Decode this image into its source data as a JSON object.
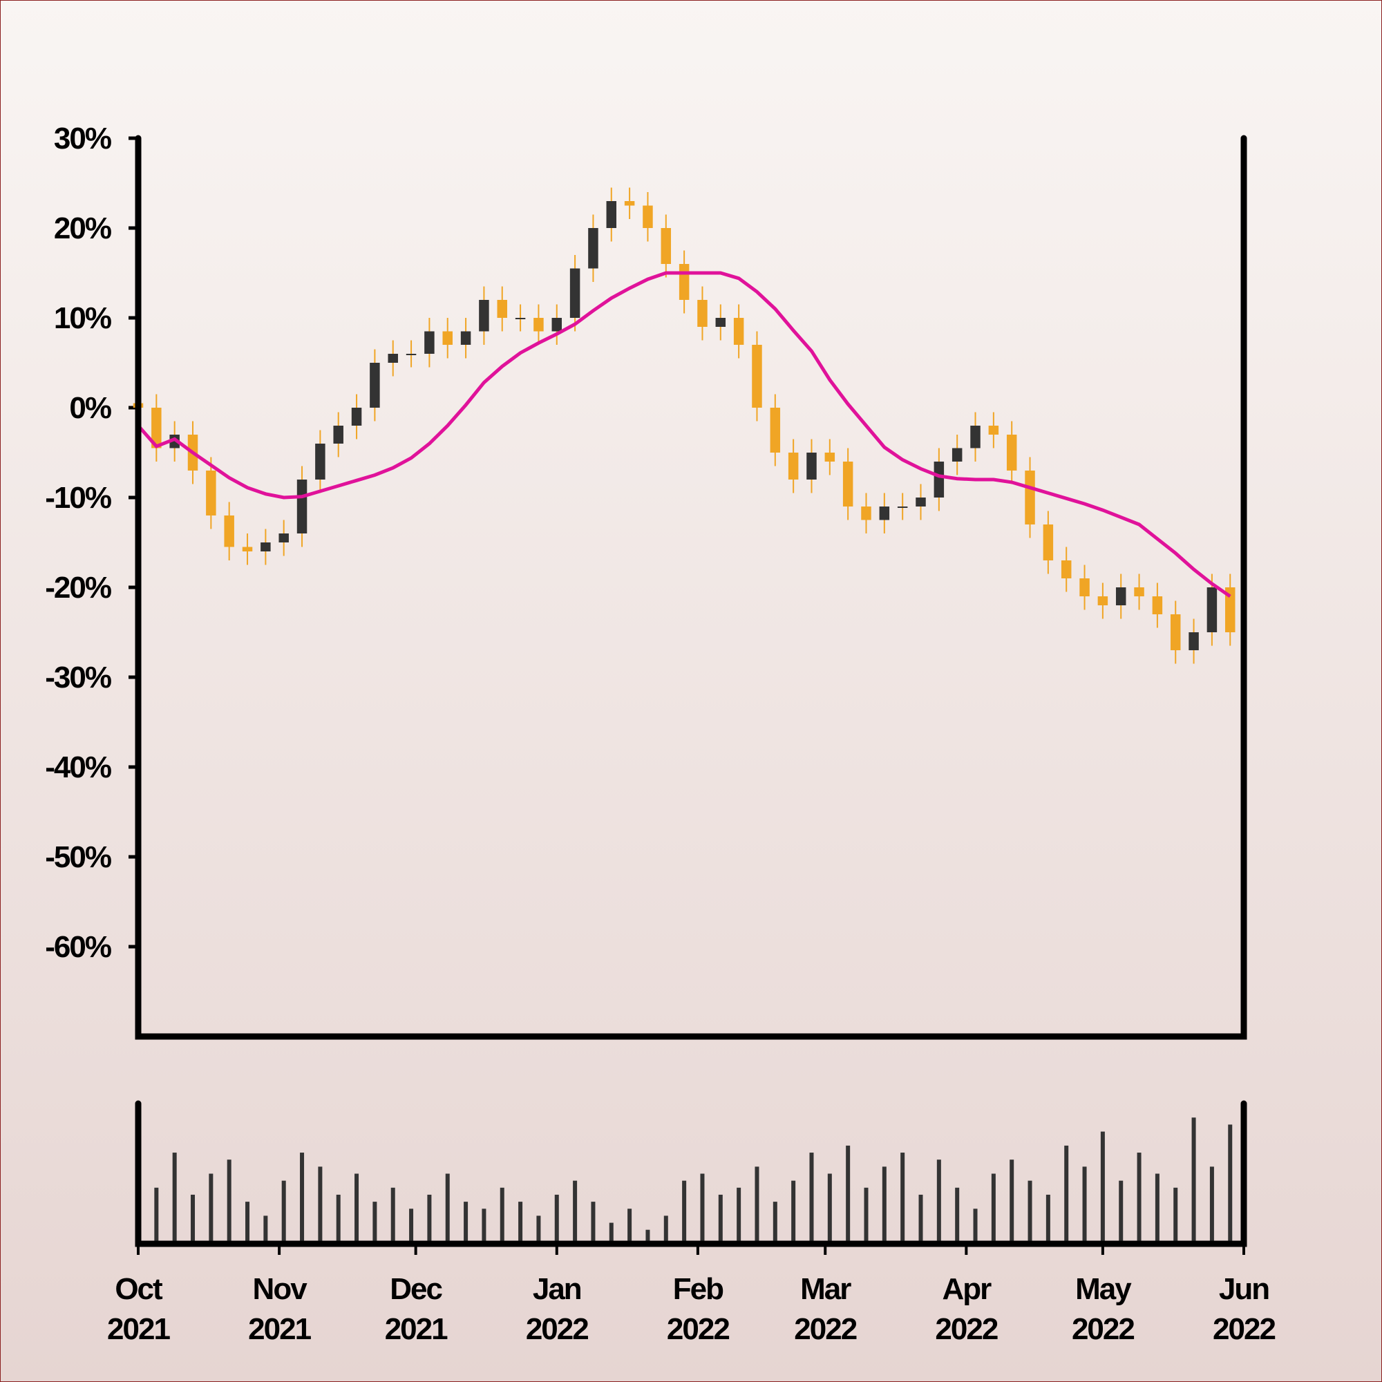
{
  "chart_data": [
    {
      "type": "candlestick",
      "x": [
        0,
        4,
        8,
        12,
        16,
        20,
        24,
        28,
        32,
        36,
        40,
        44,
        48,
        52,
        56,
        60,
        64,
        68,
        72,
        76,
        80,
        84,
        88,
        92,
        96,
        100,
        104,
        108,
        112,
        116,
        120,
        124,
        128,
        132,
        136,
        140,
        144,
        148,
        152,
        156,
        160,
        164,
        168,
        172,
        176,
        180,
        184,
        188,
        192,
        196,
        200,
        204,
        208,
        212,
        216,
        220,
        224,
        228,
        232,
        236,
        240
      ],
      "open": [
        0.5,
        0,
        -4.5,
        -3,
        -7,
        -12,
        -15.5,
        -16,
        -15,
        -14,
        -8,
        -4,
        -2,
        0,
        5,
        6,
        6,
        8.5,
        7,
        8.5,
        12,
        10,
        10,
        8.5,
        10,
        15.5,
        20,
        23,
        22.5,
        20,
        16,
        12,
        9,
        10,
        7,
        0,
        -5,
        -8,
        -5,
        -6,
        -11,
        -12.5,
        -11,
        -11,
        -10,
        -6,
        -4.5,
        -2,
        -3,
        -7,
        -13,
        -17,
        -19,
        -21,
        -22,
        -20,
        -21,
        -23,
        -27,
        -25,
        -20
      ],
      "high": [
        2,
        1.5,
        -1.5,
        -1.5,
        -5.5,
        -10.5,
        -14,
        -13.5,
        -12.5,
        -6.5,
        -2.5,
        -0.5,
        1.5,
        6.5,
        7.5,
        7.5,
        10,
        10,
        10,
        13.5,
        13.5,
        11.5,
        11.5,
        11.5,
        17,
        21.5,
        24.5,
        24.5,
        24,
        21.5,
        17.5,
        13.5,
        11.5,
        11.5,
        8.5,
        1.5,
        -3.5,
        -3.5,
        -3.5,
        -4.5,
        -9.5,
        -9.5,
        -9.5,
        -8.5,
        -4.5,
        -3,
        -0.5,
        -0.5,
        -1.5,
        -5.5,
        -11.5,
        -15.5,
        -17.5,
        -19.5,
        -18.5,
        -18.5,
        -19.5,
        -21.5,
        -23.5,
        -18.5,
        -18.5
      ],
      "low": [
        -1.5,
        -6,
        -6,
        -8.5,
        -13.5,
        -17,
        -17.5,
        -17.5,
        -16.5,
        -15.5,
        -9.5,
        -5.5,
        -3.5,
        -1.5,
        3.5,
        4.5,
        4.5,
        5.5,
        5.5,
        7,
        8.5,
        8.5,
        7,
        7,
        8.5,
        14,
        18.5,
        21,
        18.5,
        14.5,
        10.5,
        7.5,
        7.5,
        5.5,
        -1.5,
        -6.5,
        -9.5,
        -9.5,
        -7.5,
        -12.5,
        -14,
        -14,
        -12.5,
        -12.5,
        -11.5,
        -7.5,
        -6,
        -4.5,
        -8.5,
        -14.5,
        -18.5,
        -20.5,
        -22.5,
        -23.5,
        -23.5,
        -22.5,
        -24.5,
        -28.5,
        -28.5,
        -26.5,
        -26.5
      ],
      "close": [
        0,
        -4.5,
        -3,
        -7,
        -12,
        -15.5,
        -16,
        -15,
        -14,
        -8,
        -4,
        -2,
        0,
        5,
        6,
        6,
        8.5,
        7,
        8.5,
        12,
        10,
        10,
        8.5,
        10,
        15.5,
        20,
        23,
        22.5,
        20,
        16,
        12,
        9,
        10,
        7,
        0,
        -5,
        -8,
        -5,
        -6,
        -11,
        -12.5,
        -11,
        -11,
        -10,
        -6,
        -4.5,
        -2,
        -3,
        -7,
        -13,
        -17,
        -19,
        -21,
        -22,
        -20,
        -21,
        -23,
        -27,
        -25,
        -20,
        -25
      ],
      "up_color": "#333333",
      "down_color": "#f0a525",
      "line": {
        "color": "#e0129a",
        "values": [
          -2,
          -4.3,
          -3.5,
          -5,
          -6.4,
          -7.8,
          -8.9,
          -9.6,
          -10,
          -9.9,
          -9.3,
          -8.7,
          -8.1,
          -7.5,
          -6.7,
          -5.6,
          -4,
          -2,
          0.3,
          2.8,
          4.6,
          6.1,
          7.2,
          8.2,
          9.3,
          10.8,
          12.2,
          13.3,
          14.3,
          15,
          15,
          15,
          15,
          14.4,
          12.9,
          11,
          8.6,
          6.3,
          3.1,
          0.4,
          -2,
          -4.4,
          -5.8,
          -6.8,
          -7.6,
          -7.9,
          -8,
          -8,
          -8.3,
          -8.9,
          -9.5,
          -10.1,
          -10.7,
          -11.4,
          -12.2,
          -13,
          -14.6,
          -16.2,
          -18,
          -19.6,
          -21
        ]
      },
      "xlim": [
        0,
        243
      ],
      "ylim": [
        -70,
        30
      ],
      "yticks": [
        {
          "value": 30,
          "label": "30%"
        },
        {
          "value": 20,
          "label": "20%"
        },
        {
          "value": 10,
          "label": "10%"
        },
        {
          "value": 0,
          "label": "0%"
        },
        {
          "value": -10,
          "label": "-10%"
        },
        {
          "value": -20,
          "label": "-20%"
        },
        {
          "value": -30,
          "label": "-30%"
        },
        {
          "value": -40,
          "label": "-40%"
        },
        {
          "value": -50,
          "label": "-50%"
        },
        {
          "value": -60,
          "label": "-60%"
        }
      ]
    },
    {
      "type": "bar",
      "x": [
        0,
        4,
        8,
        12,
        16,
        20,
        24,
        28,
        32,
        36,
        40,
        44,
        48,
        52,
        56,
        60,
        64,
        68,
        72,
        76,
        80,
        84,
        88,
        92,
        96,
        100,
        104,
        108,
        112,
        116,
        120,
        124,
        128,
        132,
        136,
        140,
        144,
        148,
        152,
        156,
        160,
        164,
        168,
        172,
        176,
        180,
        184,
        188,
        192,
        196,
        200,
        204,
        208,
        212,
        216,
        220,
        224,
        228,
        232,
        236,
        240
      ],
      "values": [
        55,
        40,
        65,
        35,
        50,
        60,
        30,
        20,
        45,
        65,
        55,
        35,
        50,
        30,
        40,
        25,
        35,
        50,
        30,
        25,
        40,
        30,
        20,
        35,
        45,
        30,
        15,
        25,
        10,
        20,
        45,
        50,
        35,
        40,
        55,
        30,
        45,
        65,
        50,
        70,
        40,
        55,
        65,
        35,
        60,
        40,
        25,
        50,
        60,
        45,
        35,
        70,
        55,
        80,
        45,
        65,
        50,
        40,
        90,
        55,
        85
      ],
      "color": "#333333",
      "xlim": [
        0,
        243
      ],
      "ylim": [
        0,
        100
      ],
      "xticks": [
        {
          "value": 0,
          "label": "Oct 2021"
        },
        {
          "value": 31,
          "label": "Nov 2021"
        },
        {
          "value": 61,
          "label": "Dec 2021"
        },
        {
          "value": 92,
          "label": "Jan 2022"
        },
        {
          "value": 123,
          "label": "Feb 2022"
        },
        {
          "value": 151,
          "label": "Mar 2022"
        },
        {
          "value": 182,
          "label": "Apr 2022"
        },
        {
          "value": 212,
          "label": "May 2022"
        },
        {
          "value": 243,
          "label": "Jun 2022"
        }
      ]
    }
  ]
}
